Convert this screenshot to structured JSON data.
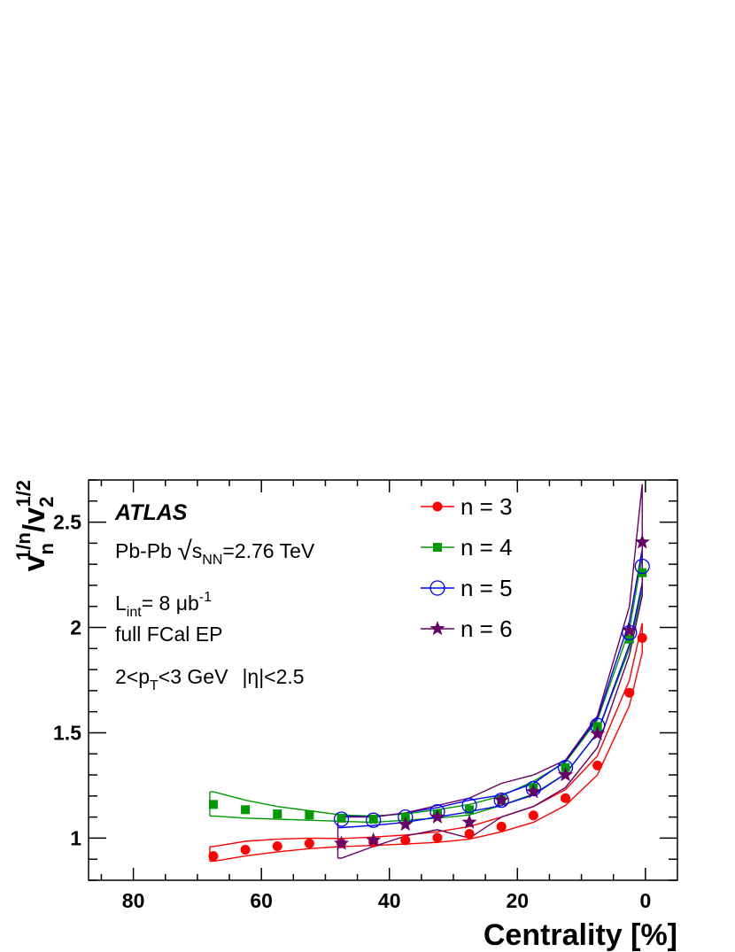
{
  "chart_data": {
    "type": "scatter",
    "title": "",
    "xlabel": "Centrality [%]",
    "ylabel": {
      "base": "v",
      "sub1": "n",
      "sup1": "1/n",
      "slash": "/",
      "sub2": "2",
      "sup2": "1/2"
    },
    "xlim": [
      87,
      -5
    ],
    "ylim": [
      0.8,
      2.7
    ],
    "x_ticks": [
      80,
      60,
      40,
      20,
      0
    ],
    "x_tick_labels": [
      "80",
      "60",
      "40",
      "20",
      "0"
    ],
    "y_ticks": [
      1,
      1.5,
      2,
      2.5
    ],
    "y_tick_labels": [
      "1",
      "1.5",
      "2",
      "2.5"
    ],
    "grid": false,
    "legend_position": "top-right",
    "annotations": {
      "experiment": "ATLAS",
      "system": "Pb-Pb ",
      "sqrt_symbol": "√",
      "energy_var": "s",
      "energy_sub": "NN",
      "energy_value": "=2.76 TeV",
      "lumi_var": "L",
      "lumi_sub": "int",
      "lumi_value": "= 8 μb",
      "lumi_sup": "-1",
      "method": "full FCal EP",
      "pt_range_pre": "2<p",
      "pt_sub": "T",
      "pt_range_post": "<3 GeV",
      "eta_range": "|η|<2.5"
    },
    "series": [
      {
        "name": "n = 3",
        "color": "#ff0000",
        "marker": "filled-circle",
        "x": [
          67.5,
          62.5,
          57.5,
          52.5,
          47.5,
          42.5,
          37.5,
          32.5,
          27.5,
          22.5,
          17.5,
          12.5,
          7.5,
          2.5,
          0.5
        ],
        "y": [
          0.915,
          0.945,
          0.962,
          0.975,
          0.975,
          0.98,
          0.99,
          1.002,
          1.02,
          1.055,
          1.108,
          1.19,
          1.345,
          1.69,
          1.95
        ],
        "band_upper": [
          0.96,
          0.985,
          0.995,
          1.0,
          0.998,
          1.005,
          1.015,
          1.03,
          1.055,
          1.1,
          1.15,
          1.23,
          1.39,
          1.75,
          2.02
        ],
        "band_lower": [
          0.89,
          0.915,
          0.935,
          0.95,
          0.96,
          0.965,
          0.972,
          0.98,
          0.995,
          1.03,
          1.075,
          1.155,
          1.3,
          1.63,
          1.88
        ]
      },
      {
        "name": "n = 4",
        "color": "#009900",
        "marker": "filled-square",
        "x": [
          67.5,
          62.5,
          57.5,
          52.5,
          47.5,
          42.5,
          37.5,
          32.5,
          27.5,
          22.5,
          17.5,
          12.5,
          7.5,
          2.5,
          0.5
        ],
        "y": [
          1.16,
          1.135,
          1.115,
          1.11,
          1.095,
          1.09,
          1.1,
          1.115,
          1.135,
          1.18,
          1.24,
          1.335,
          1.53,
          1.945,
          2.26
        ],
        "band_upper": [
          1.22,
          1.18,
          1.15,
          1.13,
          1.11,
          1.105,
          1.115,
          1.135,
          1.16,
          1.2,
          1.27,
          1.36,
          1.56,
          1.99,
          2.34
        ],
        "band_lower": [
          1.105,
          1.095,
          1.09,
          1.085,
          1.08,
          1.075,
          1.085,
          1.095,
          1.11,
          1.155,
          1.21,
          1.305,
          1.5,
          1.9,
          2.18
        ]
      },
      {
        "name": "n = 5",
        "color": "#0000ff",
        "marker": "open-circle",
        "x": [
          47.5,
          42.5,
          37.5,
          32.5,
          27.5,
          22.5,
          17.5,
          12.5,
          7.5,
          2.5,
          0.5
        ],
        "y": [
          1.09,
          1.085,
          1.1,
          1.125,
          1.155,
          1.18,
          1.235,
          1.335,
          1.535,
          1.975,
          2.29
        ],
        "band_upper": [
          1.105,
          1.1,
          1.12,
          1.145,
          1.18,
          1.205,
          1.26,
          1.365,
          1.57,
          2.03,
          2.37
        ],
        "band_lower": [
          1.05,
          1.06,
          1.075,
          1.1,
          1.125,
          1.155,
          1.205,
          1.305,
          1.5,
          1.92,
          2.21
        ]
      },
      {
        "name": "n = 6",
        "color": "#660066",
        "marker": "filled-star",
        "x": [
          47.5,
          42.5,
          37.5,
          32.5,
          27.5,
          22.5,
          17.5,
          12.5,
          7.5,
          2.5,
          0.5
        ],
        "y": [
          0.975,
          0.99,
          1.065,
          1.1,
          1.075,
          1.18,
          1.22,
          1.3,
          1.495,
          1.985,
          2.405
        ],
        "band_upper": [
          1.1,
          1.1,
          1.12,
          1.155,
          1.19,
          1.26,
          1.3,
          1.37,
          1.58,
          2.1,
          2.68
        ],
        "band_lower": [
          0.905,
          0.96,
          1.01,
          1.04,
          1.0,
          1.1,
          1.15,
          1.24,
          1.43,
          1.87,
          2.15
        ]
      }
    ]
  }
}
